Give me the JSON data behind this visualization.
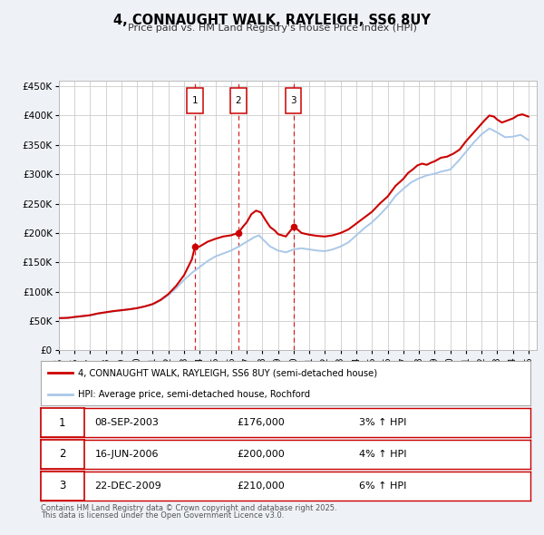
{
  "title": "4, CONNAUGHT WALK, RAYLEIGH, SS6 8UY",
  "subtitle": "Price paid vs. HM Land Registry's House Price Index (HPI)",
  "legend_line1": "4, CONNAUGHT WALK, RAYLEIGH, SS6 8UY (semi-detached house)",
  "legend_line2": "HPI: Average price, semi-detached house, Rochford",
  "price_color": "#cc0000",
  "hpi_color": "#aac8e8",
  "background_color": "#eef2f7",
  "plot_bg_color": "#ffffff",
  "grid_color": "#cccccc",
  "ylim": [
    0,
    460000
  ],
  "yticks": [
    0,
    50000,
    100000,
    150000,
    200000,
    250000,
    300000,
    350000,
    400000,
    450000
  ],
  "ytick_labels": [
    "£0",
    "£50K",
    "£100K",
    "£150K",
    "£200K",
    "£250K",
    "£300K",
    "£350K",
    "£400K",
    "£450K"
  ],
  "xmin": 1995,
  "xmax": 2025.5,
  "transactions": [
    {
      "num": 1,
      "date": "08-SEP-2003",
      "x": 2003.69,
      "price": 176000,
      "pct": "3%",
      "dir": "↑"
    },
    {
      "num": 2,
      "date": "16-JUN-2006",
      "x": 2006.46,
      "price": 200000,
      "pct": "4%",
      "dir": "↑"
    },
    {
      "num": 3,
      "date": "22-DEC-2009",
      "x": 2009.98,
      "price": 210000,
      "pct": "6%",
      "dir": "↑"
    }
  ],
  "footer_line1": "Contains HM Land Registry data © Crown copyright and database right 2025.",
  "footer_line2": "This data is licensed under the Open Government Licence v3.0.",
  "price_data": [
    [
      1995.0,
      55000
    ],
    [
      1995.3,
      55200
    ],
    [
      1995.6,
      55500
    ],
    [
      1996.0,
      57000
    ],
    [
      1996.5,
      58500
    ],
    [
      1997.0,
      60000
    ],
    [
      1997.5,
      63000
    ],
    [
      1998.0,
      65000
    ],
    [
      1998.5,
      67000
    ],
    [
      1999.0,
      68500
    ],
    [
      1999.5,
      70000
    ],
    [
      2000.0,
      72000
    ],
    [
      2000.5,
      75000
    ],
    [
      2001.0,
      79000
    ],
    [
      2001.5,
      86000
    ],
    [
      2002.0,
      96000
    ],
    [
      2002.5,
      110000
    ],
    [
      2003.0,
      128000
    ],
    [
      2003.5,
      155000
    ],
    [
      2003.69,
      176000
    ],
    [
      2004.0,
      177000
    ],
    [
      2004.5,
      185000
    ],
    [
      2005.0,
      190000
    ],
    [
      2005.5,
      194000
    ],
    [
      2006.0,
      196000
    ],
    [
      2006.46,
      200000
    ],
    [
      2006.8,
      212000
    ],
    [
      2007.0,
      218000
    ],
    [
      2007.3,
      232000
    ],
    [
      2007.6,
      238000
    ],
    [
      2007.9,
      235000
    ],
    [
      2008.2,
      222000
    ],
    [
      2008.5,
      210000
    ],
    [
      2008.8,
      204000
    ],
    [
      2009.0,
      198000
    ],
    [
      2009.5,
      194000
    ],
    [
      2009.98,
      210000
    ],
    [
      2010.2,
      207000
    ],
    [
      2010.5,
      200000
    ],
    [
      2011.0,
      197000
    ],
    [
      2011.5,
      195000
    ],
    [
      2012.0,
      194000
    ],
    [
      2012.5,
      196000
    ],
    [
      2013.0,
      200000
    ],
    [
      2013.5,
      206000
    ],
    [
      2014.0,
      216000
    ],
    [
      2014.5,
      226000
    ],
    [
      2015.0,
      236000
    ],
    [
      2015.5,
      250000
    ],
    [
      2016.0,
      262000
    ],
    [
      2016.5,
      280000
    ],
    [
      2017.0,
      292000
    ],
    [
      2017.3,
      302000
    ],
    [
      2017.6,
      308000
    ],
    [
      2017.9,
      315000
    ],
    [
      2018.2,
      318000
    ],
    [
      2018.5,
      316000
    ],
    [
      2018.8,
      320000
    ],
    [
      2019.0,
      322000
    ],
    [
      2019.4,
      328000
    ],
    [
      2019.8,
      330000
    ],
    [
      2020.2,
      335000
    ],
    [
      2020.6,
      342000
    ],
    [
      2021.0,
      356000
    ],
    [
      2021.4,
      368000
    ],
    [
      2021.8,
      380000
    ],
    [
      2022.2,
      392000
    ],
    [
      2022.5,
      400000
    ],
    [
      2022.8,
      398000
    ],
    [
      2023.0,
      393000
    ],
    [
      2023.3,
      388000
    ],
    [
      2023.6,
      391000
    ],
    [
      2024.0,
      395000
    ],
    [
      2024.3,
      400000
    ],
    [
      2024.6,
      402000
    ],
    [
      2025.0,
      398000
    ]
  ],
  "hpi_data": [
    [
      1995.0,
      55000
    ],
    [
      1995.3,
      55200
    ],
    [
      1995.6,
      55500
    ],
    [
      1996.0,
      56500
    ],
    [
      1996.5,
      57800
    ],
    [
      1997.0,
      59500
    ],
    [
      1997.5,
      62500
    ],
    [
      1998.0,
      64500
    ],
    [
      1998.5,
      66500
    ],
    [
      1999.0,
      68000
    ],
    [
      1999.5,
      70000
    ],
    [
      2000.0,
      72000
    ],
    [
      2000.5,
      75000
    ],
    [
      2001.0,
      78000
    ],
    [
      2001.5,
      85000
    ],
    [
      2002.0,
      94000
    ],
    [
      2002.5,
      106000
    ],
    [
      2003.0,
      120000
    ],
    [
      2003.5,
      132000
    ],
    [
      2004.0,
      142000
    ],
    [
      2004.5,
      152000
    ],
    [
      2005.0,
      160000
    ],
    [
      2005.5,
      165000
    ],
    [
      2006.0,
      170000
    ],
    [
      2006.5,
      177000
    ],
    [
      2007.0,
      185000
    ],
    [
      2007.5,
      193000
    ],
    [
      2007.8,
      196000
    ],
    [
      2008.0,
      190000
    ],
    [
      2008.5,
      177000
    ],
    [
      2009.0,
      170000
    ],
    [
      2009.5,
      167000
    ],
    [
      2010.0,
      172000
    ],
    [
      2010.5,
      174000
    ],
    [
      2011.0,
      172000
    ],
    [
      2011.5,
      170000
    ],
    [
      2012.0,
      169000
    ],
    [
      2012.5,
      172000
    ],
    [
      2013.0,
      177000
    ],
    [
      2013.5,
      184000
    ],
    [
      2014.0,
      196000
    ],
    [
      2014.5,
      208000
    ],
    [
      2015.0,
      218000
    ],
    [
      2015.5,
      231000
    ],
    [
      2016.0,
      245000
    ],
    [
      2016.5,
      263000
    ],
    [
      2017.0,
      275000
    ],
    [
      2017.5,
      286000
    ],
    [
      2018.0,
      293000
    ],
    [
      2018.5,
      298000
    ],
    [
      2019.0,
      301000
    ],
    [
      2019.5,
      305000
    ],
    [
      2020.0,
      308000
    ],
    [
      2020.5,
      322000
    ],
    [
      2021.0,
      338000
    ],
    [
      2021.5,
      354000
    ],
    [
      2022.0,
      368000
    ],
    [
      2022.5,
      378000
    ],
    [
      2023.0,
      371000
    ],
    [
      2023.5,
      363000
    ],
    [
      2024.0,
      364000
    ],
    [
      2024.5,
      367000
    ],
    [
      2025.0,
      358000
    ]
  ]
}
